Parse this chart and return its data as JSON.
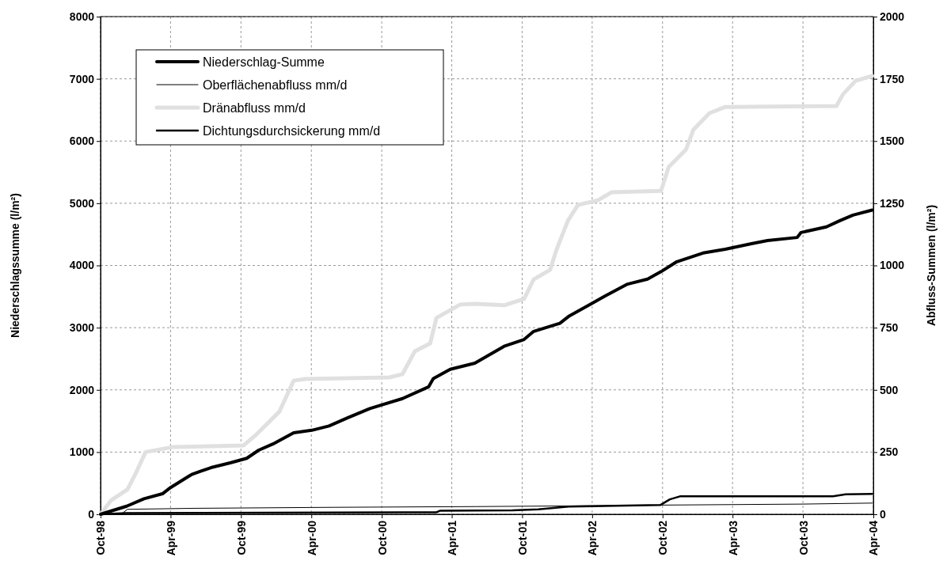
{
  "chart_data": {
    "type": "line",
    "ylabel": "Niederschlagssumme (l/m²)",
    "y2label": "Abfluss-Summen (l/m²)",
    "xlim": [
      "1998-10-01",
      "2004-04-01"
    ],
    "xticks": [
      {
        "value": "1998-10-01",
        "label": "Oct-98"
      },
      {
        "value": "1999-04-01",
        "label": "Apr-99"
      },
      {
        "value": "1999-10-01",
        "label": "Oct-99"
      },
      {
        "value": "2000-04-01",
        "label": "Apr-00"
      },
      {
        "value": "2000-10-01",
        "label": "Oct-00"
      },
      {
        "value": "2001-04-01",
        "label": "Apr-01"
      },
      {
        "value": "2001-10-01",
        "label": "Oct-01"
      },
      {
        "value": "2002-04-01",
        "label": "Apr-02"
      },
      {
        "value": "2002-10-01",
        "label": "Oct-02"
      },
      {
        "value": "2003-04-01",
        "label": "Apr-03"
      },
      {
        "value": "2003-10-01",
        "label": "Oct-03"
      },
      {
        "value": "2004-04-01",
        "label": "Apr-04"
      }
    ],
    "ylim": [
      0,
      8000
    ],
    "yticks": [
      0,
      1000,
      2000,
      3000,
      4000,
      5000,
      6000,
      7000,
      8000
    ],
    "y2lim": [
      0,
      2000
    ],
    "y2ticks": [
      0,
      250,
      500,
      750,
      1000,
      1250,
      1500,
      1750,
      2000
    ],
    "grid": true,
    "legend": "top left",
    "series": [
      {
        "name": "Niederschlag-Summe",
        "color": "#000000",
        "x": [
          "1998-10-01",
          "1998-12-08",
          "1999-01-22",
          "1999-03-11",
          "1999-04-01",
          "1999-05-18",
          "1999-05-26",
          "1999-07-15",
          "1999-09-05",
          "1999-10-16",
          "1999-11-16",
          "1999-12-23",
          "2000-02-15",
          "2000-04-02",
          "2000-05-17",
          "2000-07-04",
          "2000-08-31",
          "2000-11-24",
          "2001-01-31",
          "2001-02-12",
          "2001-03-28",
          "2001-05-31",
          "2001-08-15",
          "2001-10-06",
          "2001-10-31",
          "2002-01-07",
          "2002-02-01",
          "2002-03-23",
          "2002-05-05",
          "2002-07-02",
          "2002-08-23",
          "2002-09-27",
          "2002-11-07",
          "2003-01-14",
          "2003-03-13",
          "2003-05-20",
          "2003-07-01",
          "2003-09-16",
          "2003-09-26",
          "2003-12-01",
          "2004-01-05",
          "2004-02-08",
          "2004-03-29"
        ],
        "values": [
          0,
          130,
          250,
          330,
          430,
          610,
          640,
          750,
          830,
          900,
          1030,
          1130,
          1310,
          1350,
          1420,
          1550,
          1700,
          1860,
          2050,
          2180,
          2330,
          2430,
          2700,
          2810,
          2940,
          3070,
          3190,
          3360,
          3510,
          3700,
          3780,
          3900,
          4060,
          4200,
          4260,
          4350,
          4400,
          4450,
          4530,
          4620,
          4720,
          4810,
          4890
        ]
      },
      {
        "name": "Oberflächenabfluss mm/d",
        "color": "#000000",
        "axis": "y2",
        "x": [
          "1998-10-01",
          "1998-11-25",
          "1998-12-10",
          "1999-06-01",
          "2000-06-01",
          "2001-06-01",
          "2002-06-01",
          "2002-10-01",
          "2003-10-01",
          "2004-03-29"
        ],
        "values": [
          0,
          2,
          20,
          24,
          28,
          31,
          35,
          37,
          41,
          45
        ]
      },
      {
        "name": "Dränabfluss mm/d",
        "color": "#e0e0e0",
        "axis": "y2",
        "x": [
          "1998-10-01",
          "1998-10-29",
          "1998-12-10",
          "1998-12-30",
          "1999-01-26",
          "1999-04-05",
          "1999-10-08",
          "1999-11-06",
          "1999-12-07",
          "2000-01-09",
          "2000-02-15",
          "2000-03-16",
          "2000-10-21",
          "2000-11-24",
          "2000-12-26",
          "2001-02-04",
          "2001-02-20",
          "2001-04-23",
          "2001-05-31",
          "2001-08-15",
          "2001-10-06",
          "2001-10-31",
          "2001-12-13",
          "2001-12-29",
          "2002-01-28",
          "2002-02-23",
          "2002-04-16",
          "2002-05-21",
          "2002-09-27",
          "2002-10-17",
          "2002-12-01",
          "2002-12-20",
          "2003-01-31",
          "2003-03-13",
          "2003-12-27",
          "2004-01-13",
          "2004-02-15",
          "2004-03-29"
        ],
        "values": [
          0,
          57,
          100,
          160,
          250,
          270,
          277,
          315,
          362,
          413,
          537,
          544,
          550,
          563,
          655,
          687,
          789,
          843,
          846,
          840,
          865,
          944,
          983,
          1062,
          1180,
          1243,
          1262,
          1294,
          1300,
          1396,
          1466,
          1545,
          1612,
          1637,
          1641,
          1688,
          1742,
          1762
        ]
      },
      {
        "name": "Dichtungsdurchsickerung mm/d",
        "color": "#000000",
        "axis": "y2",
        "x": [
          "1998-10-01",
          "1998-12-05",
          "2001-02-20",
          "2001-03-01",
          "2001-09-06",
          "2001-11-12",
          "2002-01-30",
          "2002-09-25",
          "2002-10-20",
          "2002-11-15",
          "2003-12-18",
          "2004-01-20",
          "2004-03-29"
        ],
        "values": [
          0,
          5,
          8,
          14,
          16,
          20,
          31,
          37,
          60,
          72,
          72,
          80,
          82
        ]
      }
    ]
  }
}
